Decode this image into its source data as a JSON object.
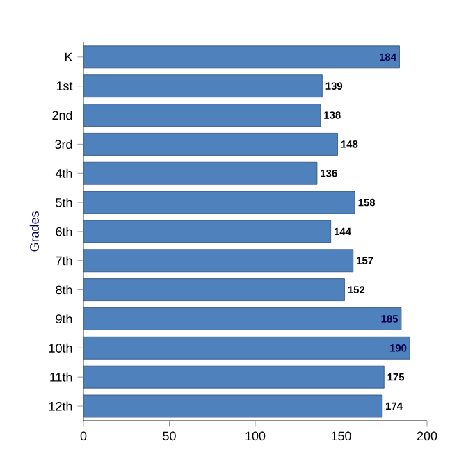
{
  "chart_data": {
    "type": "bar",
    "orientation": "horizontal",
    "ylabel": "Grades",
    "categories": [
      "K",
      "1st",
      "2nd",
      "3rd",
      "4th",
      "5th",
      "6th",
      "7th",
      "8th",
      "9th",
      "10th",
      "11th",
      "12th"
    ],
    "values": [
      184,
      139,
      138,
      148,
      136,
      158,
      144,
      157,
      152,
      185,
      190,
      175,
      174
    ],
    "color": "#4f81bd",
    "data_labels": true,
    "xlim": [
      0,
      200
    ],
    "xticks": [
      0,
      50,
      100,
      150,
      200
    ]
  }
}
